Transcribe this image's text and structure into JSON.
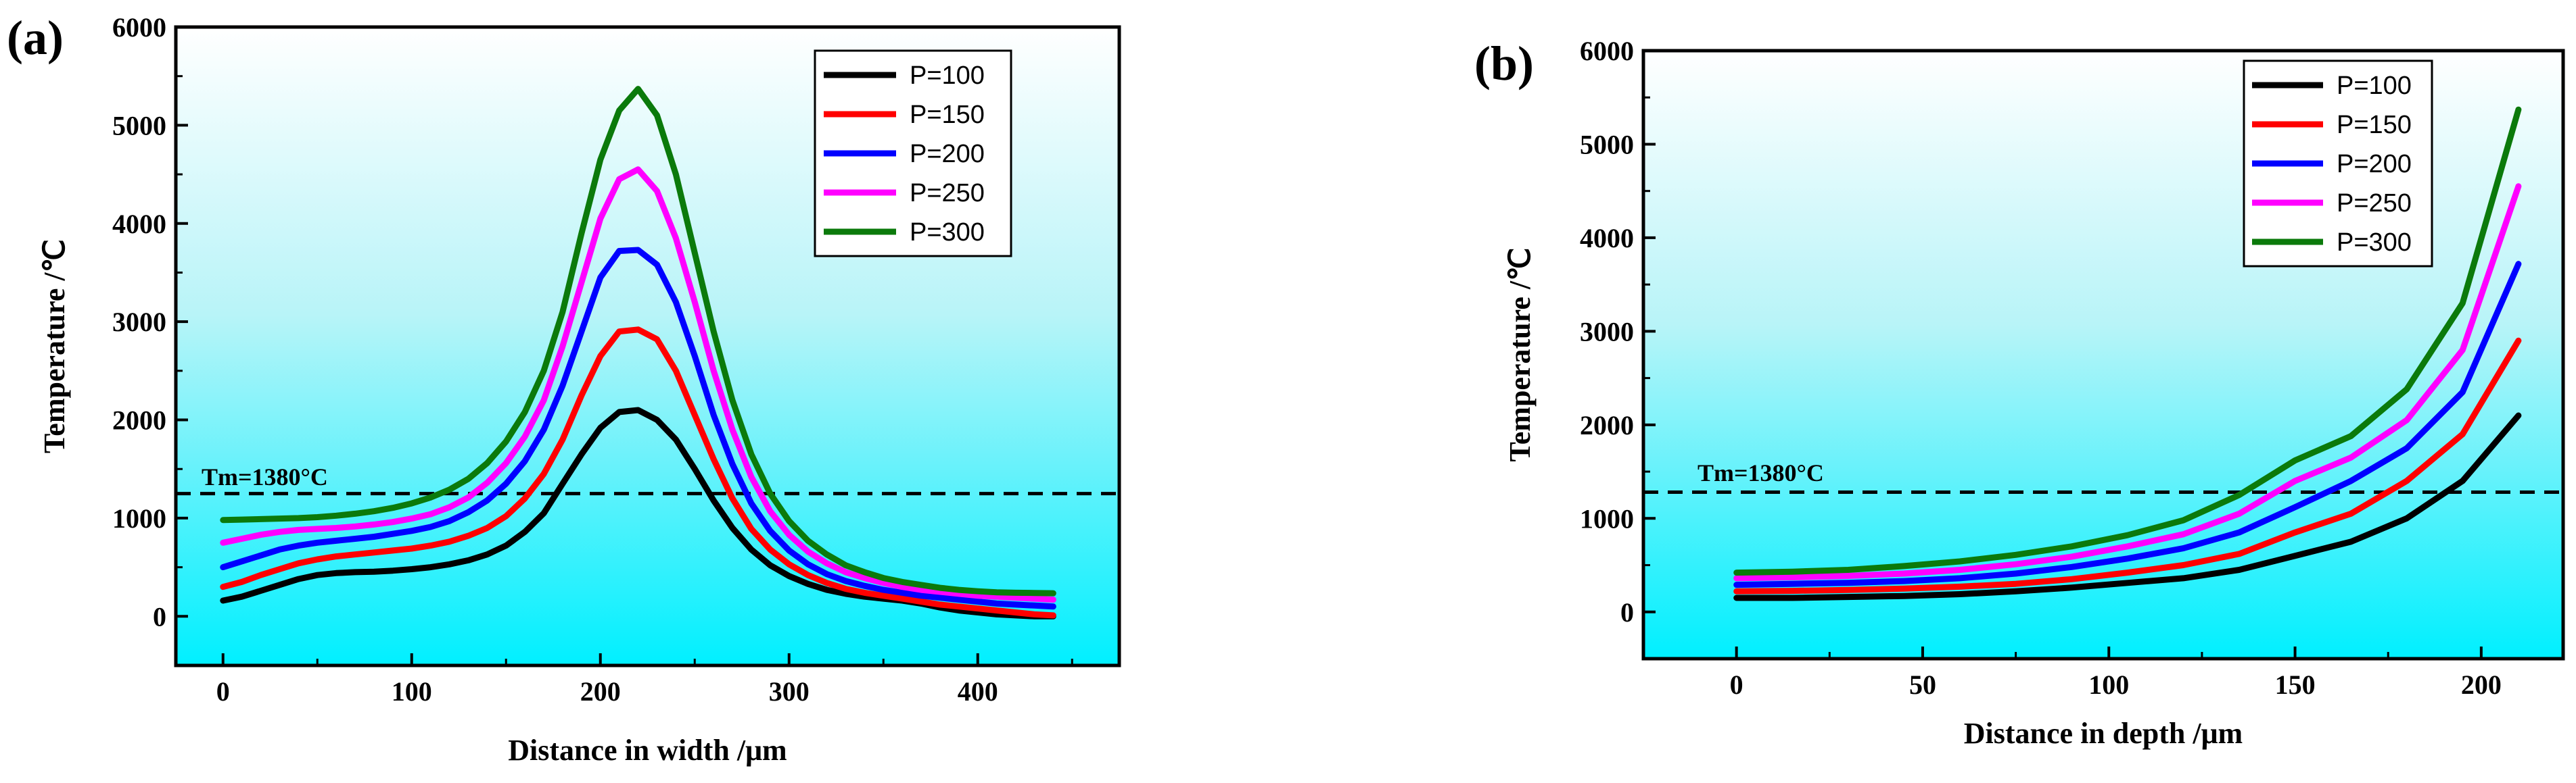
{
  "chart_data": [
    {
      "panel": "(a)",
      "type": "line",
      "xlabel": "Distance in width /μm",
      "ylabel": "Temperature /℃",
      "xlim": [
        -25,
        475
      ],
      "ylim": [
        -500,
        6000
      ],
      "xticks": [
        0,
        100,
        200,
        300,
        400
      ],
      "yticks": [
        0,
        1000,
        2000,
        3000,
        4000,
        5000,
        6000
      ],
      "background": "cyan-gradient",
      "annotation": {
        "text": "Tm=1380°C",
        "line_value": 1250,
        "style": "dashed"
      },
      "legend_position": "top-right",
      "x": [
        0,
        10,
        20,
        30,
        40,
        50,
        60,
        70,
        80,
        90,
        100,
        110,
        120,
        130,
        140,
        150,
        160,
        170,
        180,
        190,
        200,
        210,
        220,
        230,
        240,
        250,
        260,
        270,
        280,
        290,
        300,
        310,
        320,
        330,
        340,
        350,
        360,
        370,
        380,
        390,
        400,
        410,
        420,
        430,
        440
      ],
      "series": [
        {
          "name": "P=100",
          "color": "#000000",
          "values": [
            160,
            200,
            260,
            320,
            380,
            420,
            440,
            450,
            455,
            465,
            480,
            500,
            530,
            570,
            630,
            720,
            860,
            1050,
            1350,
            1650,
            1920,
            2080,
            2100,
            2000,
            1800,
            1500,
            1180,
            900,
            680,
            520,
            410,
            330,
            270,
            230,
            200,
            180,
            160,
            130,
            90,
            60,
            40,
            20,
            10,
            0,
            0
          ]
        },
        {
          "name": "P=150",
          "color": "#ff0000",
          "values": [
            300,
            350,
            420,
            480,
            540,
            580,
            610,
            630,
            650,
            670,
            690,
            720,
            760,
            820,
            900,
            1020,
            1200,
            1450,
            1800,
            2250,
            2650,
            2900,
            2920,
            2820,
            2500,
            2050,
            1600,
            1200,
            890,
            680,
            530,
            420,
            340,
            280,
            240,
            210,
            180,
            150,
            120,
            100,
            80,
            60,
            40,
            20,
            10
          ]
        },
        {
          "name": "P=200",
          "color": "#0000ff",
          "values": [
            500,
            560,
            620,
            680,
            720,
            750,
            770,
            790,
            810,
            840,
            870,
            910,
            970,
            1060,
            1180,
            1350,
            1580,
            1900,
            2350,
            2900,
            3450,
            3720,
            3730,
            3580,
            3200,
            2650,
            2050,
            1550,
            1150,
            870,
            670,
            530,
            430,
            360,
            310,
            270,
            240,
            210,
            190,
            170,
            150,
            130,
            120,
            110,
            100
          ]
        },
        {
          "name": "P=250",
          "color": "#ff00ff",
          "values": [
            750,
            790,
            830,
            860,
            880,
            890,
            900,
            915,
            935,
            960,
            995,
            1040,
            1110,
            1210,
            1360,
            1560,
            1830,
            2200,
            2750,
            3400,
            4050,
            4450,
            4550,
            4330,
            3850,
            3200,
            2500,
            1900,
            1420,
            1070,
            830,
            660,
            540,
            450,
            390,
            340,
            300,
            270,
            250,
            230,
            210,
            200,
            190,
            180,
            170
          ]
        },
        {
          "name": "P=300",
          "color": "#0b7a0b",
          "values": [
            980,
            985,
            990,
            995,
            1000,
            1010,
            1025,
            1045,
            1070,
            1105,
            1150,
            1210,
            1290,
            1400,
            1560,
            1780,
            2080,
            2500,
            3100,
            3900,
            4650,
            5150,
            5370,
            5100,
            4500,
            3700,
            2900,
            2200,
            1650,
            1250,
            970,
            770,
            630,
            520,
            450,
            390,
            350,
            320,
            290,
            270,
            255,
            245,
            240,
            238,
            235
          ]
        }
      ]
    },
    {
      "panel": "(b)",
      "type": "line",
      "xlabel": "Distance in depth /μm",
      "ylabel": "Temperature /℃",
      "xlim": [
        -25,
        222
      ],
      "ylim": [
        -500,
        6000
      ],
      "xticks": [
        0,
        50,
        100,
        150,
        200
      ],
      "yticks": [
        0,
        1000,
        2000,
        3000,
        4000,
        5000,
        6000
      ],
      "background": "cyan-gradient",
      "annotation": {
        "text": "Tm=1380°C",
        "line_value": 1280,
        "style": "dashed"
      },
      "legend_position": "top-left-of-right",
      "x": [
        0,
        15,
        30,
        45,
        60,
        75,
        90,
        105,
        120,
        135,
        150,
        165,
        180,
        195,
        210
      ],
      "series": [
        {
          "name": "P=100",
          "color": "#000000",
          "values": [
            150,
            150,
            160,
            170,
            190,
            220,
            260,
            310,
            360,
            450,
            600,
            750,
            1000,
            1400,
            2100
          ]
        },
        {
          "name": "P=150",
          "color": "#ff0000",
          "values": [
            220,
            225,
            235,
            250,
            270,
            300,
            350,
            420,
            500,
            620,
            850,
            1050,
            1400,
            1900,
            2900
          ]
        },
        {
          "name": "P=200",
          "color": "#0000ff",
          "values": [
            290,
            300,
            310,
            330,
            360,
            410,
            480,
            570,
            680,
            850,
            1120,
            1400,
            1750,
            2350,
            3720
          ]
        },
        {
          "name": "P=250",
          "color": "#ff00ff",
          "values": [
            360,
            370,
            385,
            410,
            450,
            510,
            590,
            700,
            830,
            1050,
            1400,
            1650,
            2050,
            2800,
            4550
          ]
        },
        {
          "name": "P=300",
          "color": "#0b7a0b",
          "values": [
            420,
            430,
            450,
            490,
            540,
            610,
            700,
            820,
            980,
            1250,
            1620,
            1880,
            2380,
            3300,
            5370
          ]
        }
      ]
    }
  ]
}
